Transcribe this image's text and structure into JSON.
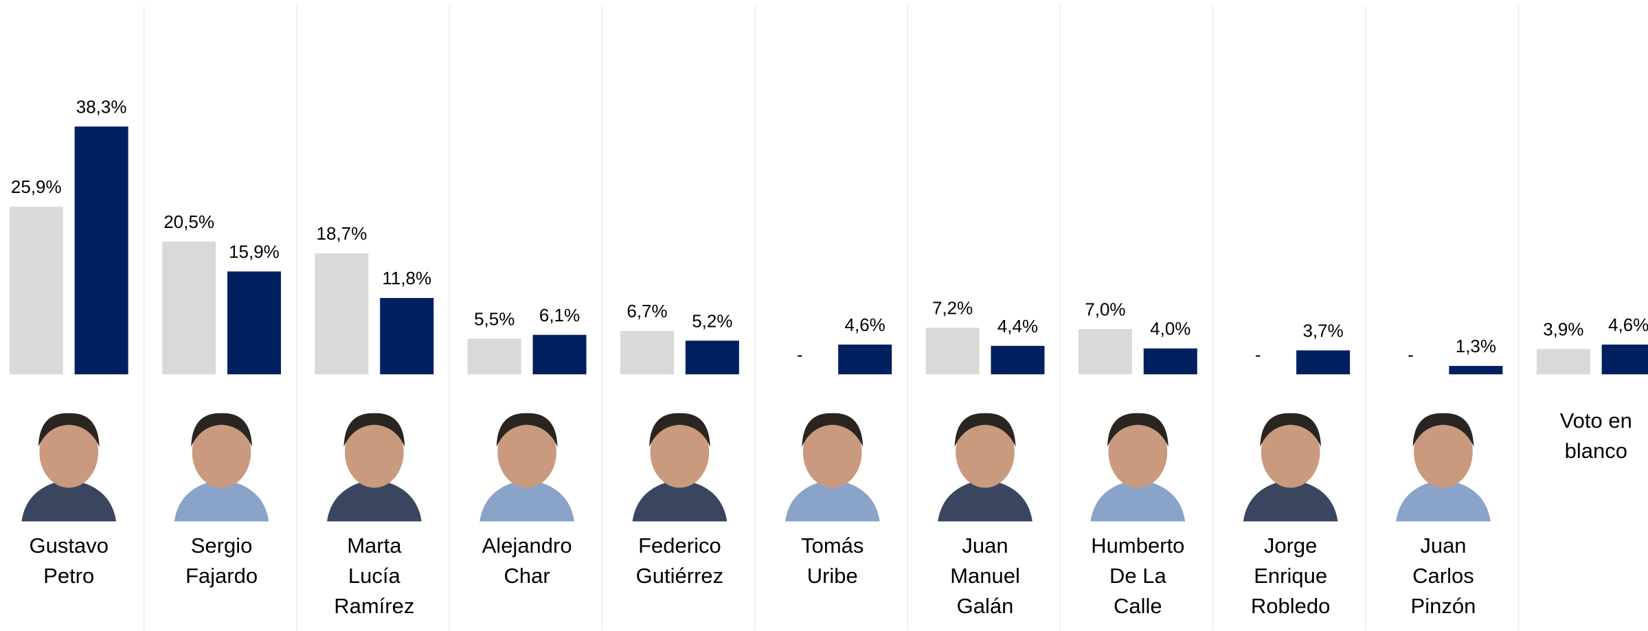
{
  "chart_data": {
    "type": "bar",
    "categories": [
      "Gustavo\nPetro",
      "Sergio\nFajardo",
      "Marta\nLucía\nRamírez",
      "Alejandro\nChar",
      "Federico\nGutiérrez",
      "Tomás\nUribe",
      "Juan\nManuel\nGalán",
      "Humberto\nDe La\nCalle",
      "Jorge\nEnrique\nRobledo",
      "Juan\nCarlos\nPinzón",
      "Voto en\nblanco"
    ],
    "series": [
      {
        "color": "#d9d9d9",
        "values": [
          25.9,
          20.5,
          18.7,
          5.5,
          6.7,
          null,
          7.2,
          7.0,
          null,
          null,
          3.9
        ],
        "value_labels": [
          "25,9%",
          "20,5%",
          "18,7%",
          "5,5%",
          "6,7%",
          "-",
          "7,2%",
          "7,0%",
          "-",
          "-",
          "3,9%"
        ]
      },
      {
        "color": "#002060",
        "values": [
          38.3,
          15.9,
          11.8,
          6.1,
          5.2,
          4.6,
          4.4,
          4.0,
          3.7,
          1.3,
          4.6
        ],
        "value_labels": [
          "38,3%",
          "15,9%",
          "11,8%",
          "6,1%",
          "5,2%",
          "4,6%",
          "4,4%",
          "4,0%",
          "3,7%",
          "1,3%",
          "4,6%"
        ]
      }
    ],
    "ylim": [
      0,
      57.8
    ]
  }
}
